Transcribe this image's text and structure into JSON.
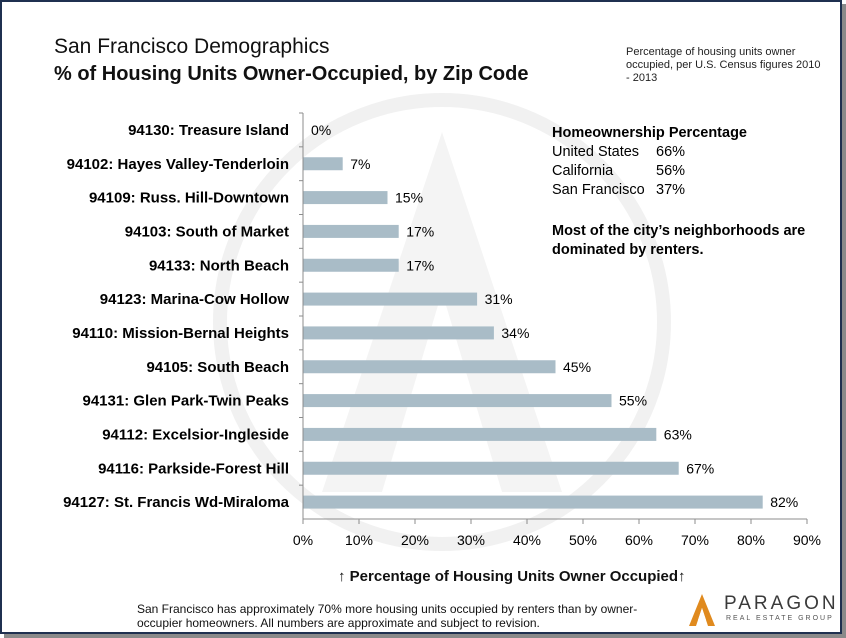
{
  "header": {
    "title": "San Francisco Demographics",
    "subtitle": "% of Housing Units Owner-Occupied, by Zip Code",
    "source_note": "Percentage of housing units owner occupied, per U.S. Census figures 2010 - 2013"
  },
  "chart_data": {
    "type": "bar",
    "orientation": "horizontal",
    "categories": [
      "94130: Treasure Island",
      "94102: Hayes Valley-Tenderloin",
      "94109: Russ. Hill-Downtown",
      "94103: South of Market",
      "94133: North Beach",
      "94123: Marina-Cow Hollow",
      "94110: Mission-Bernal Heights",
      "94105: South Beach",
      "94131: Glen Park-Twin Peaks",
      "94112: Excelsior-Ingleside",
      "94116: Parkside-Forest Hill",
      "94127: St. Francis Wd-Miraloma"
    ],
    "values": [
      0,
      7,
      15,
      17,
      17,
      31,
      34,
      45,
      55,
      63,
      67,
      82
    ],
    "value_labels": [
      "0%",
      "7%",
      "15%",
      "17%",
      "17%",
      "31%",
      "34%",
      "45%",
      "55%",
      "63%",
      "67%",
      "82%"
    ],
    "xlim": [
      0,
      90
    ],
    "x_ticks": [
      "0%",
      "10%",
      "20%",
      "30%",
      "40%",
      "50%",
      "60%",
      "70%",
      "80%",
      "90%"
    ],
    "xlabel": "↑ Percentage of Housing Units Owner Occupied↑",
    "bar_color": "#a9bcc7",
    "grid": false
  },
  "homeownership": {
    "title": "Homeownership Percentage",
    "rows": [
      {
        "name": "United States",
        "value": "66%"
      },
      {
        "name": "California",
        "value": "56%"
      },
      {
        "name": "San Francisco",
        "value": "37%"
      }
    ]
  },
  "takeaway": "Most of the city’s neighborhoods are dominated by renters.",
  "footnote": "San Francisco has approximately 70% more housing units occupied by renters than by owner-occupier homeowners. All numbers are approximate and subject to revision.",
  "logo": {
    "name": "PARAGON",
    "tagline": "REAL ESTATE GROUP",
    "icon": "paragon-a-logo-icon"
  },
  "colors": {
    "frame": "#1f3050",
    "bar": "#a9bcc7",
    "logo_orange": "#e08a1e"
  }
}
